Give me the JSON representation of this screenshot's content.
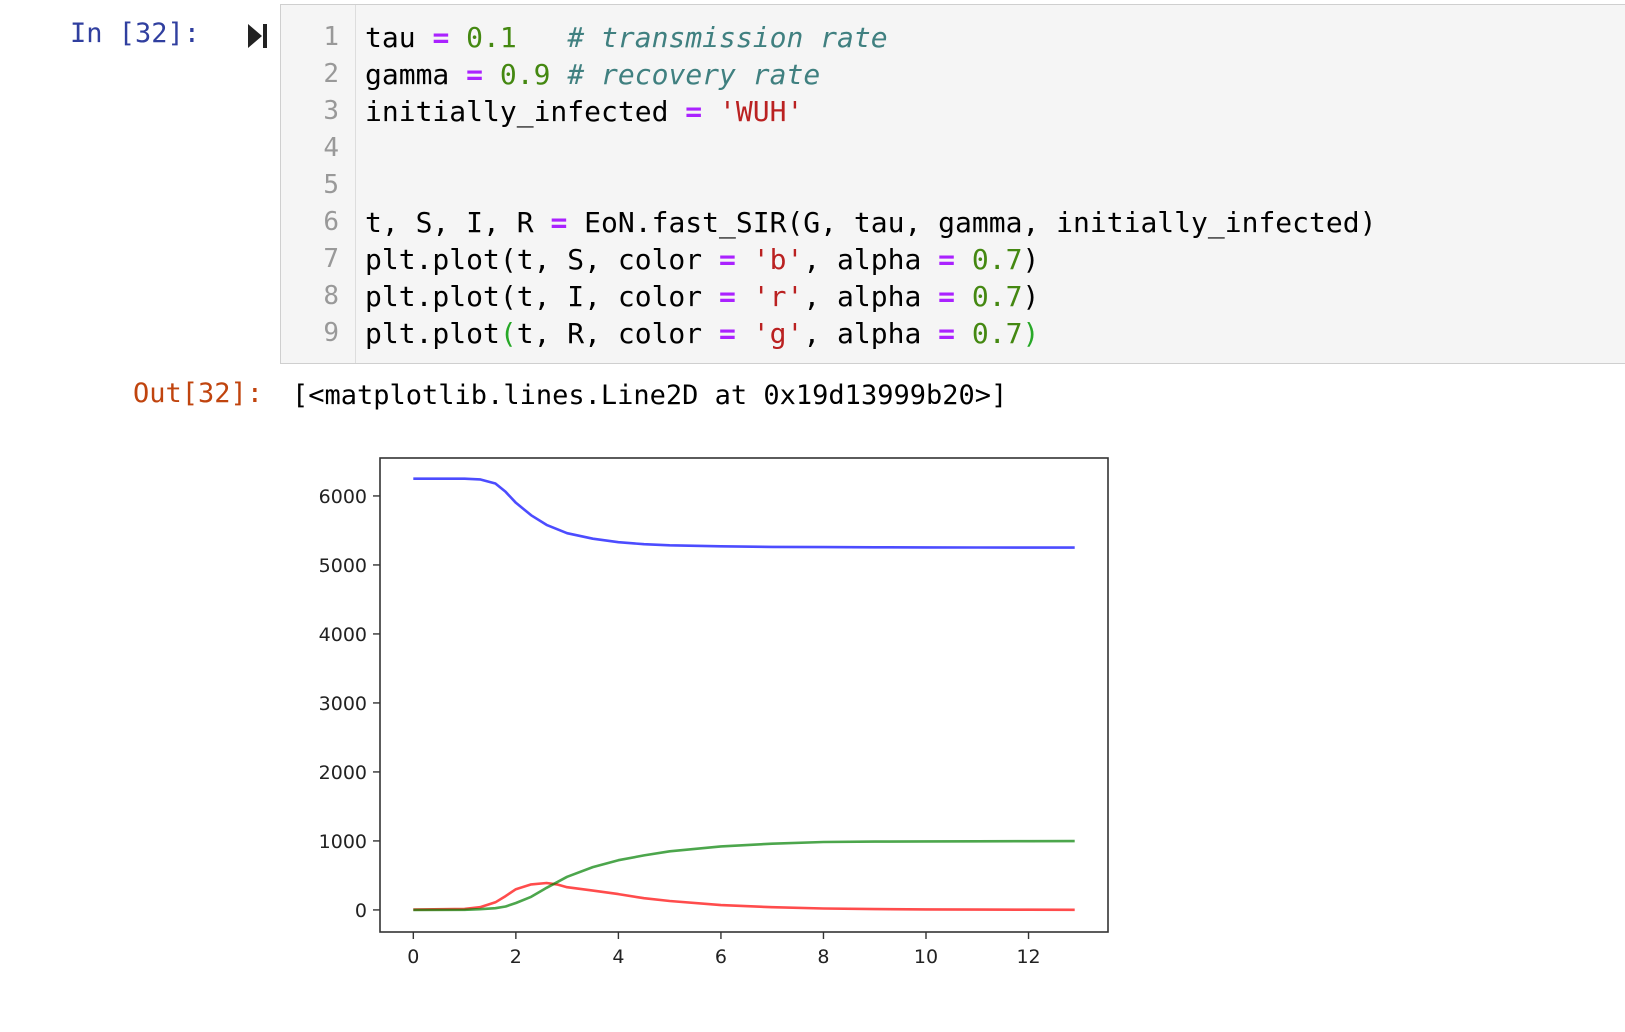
{
  "cell": {
    "in_prompt": "In [32]:",
    "lines": [
      {
        "n": "1",
        "tokens": [
          {
            "t": "tau ",
            "c": ""
          },
          {
            "t": "=",
            "c": "op"
          },
          {
            "t": " ",
            "c": ""
          },
          {
            "t": "0.1",
            "c": "num"
          },
          {
            "t": "   ",
            "c": ""
          },
          {
            "t": "# transmission rate",
            "c": "cm"
          }
        ]
      },
      {
        "n": "2",
        "tokens": [
          {
            "t": "gamma ",
            "c": ""
          },
          {
            "t": "=",
            "c": "op"
          },
          {
            "t": " ",
            "c": ""
          },
          {
            "t": "0.9",
            "c": "num"
          },
          {
            "t": " ",
            "c": ""
          },
          {
            "t": "# recovery rate",
            "c": "cm"
          }
        ]
      },
      {
        "n": "3",
        "tokens": [
          {
            "t": "initially_infected ",
            "c": ""
          },
          {
            "t": "=",
            "c": "op"
          },
          {
            "t": " ",
            "c": ""
          },
          {
            "t": "'WUH'",
            "c": "str"
          }
        ]
      },
      {
        "n": "4",
        "tokens": []
      },
      {
        "n": "5",
        "tokens": []
      },
      {
        "n": "6",
        "tokens": [
          {
            "t": "t, S, I, R ",
            "c": ""
          },
          {
            "t": "=",
            "c": "op"
          },
          {
            "t": " EoN.fast_SIR(G, tau, gamma, initially_infected)",
            "c": ""
          }
        ]
      },
      {
        "n": "7",
        "tokens": [
          {
            "t": "plt.plot(t, S, color ",
            "c": ""
          },
          {
            "t": "=",
            "c": "op"
          },
          {
            "t": " ",
            "c": ""
          },
          {
            "t": "'b'",
            "c": "str"
          },
          {
            "t": ", alpha ",
            "c": ""
          },
          {
            "t": "=",
            "c": "op"
          },
          {
            "t": " ",
            "c": ""
          },
          {
            "t": "0.7",
            "c": "num"
          },
          {
            "t": ")",
            "c": ""
          }
        ]
      },
      {
        "n": "8",
        "tokens": [
          {
            "t": "plt.plot(t, I, color ",
            "c": ""
          },
          {
            "t": "=",
            "c": "op"
          },
          {
            "t": " ",
            "c": ""
          },
          {
            "t": "'r'",
            "c": "str"
          },
          {
            "t": ", alpha ",
            "c": ""
          },
          {
            "t": "=",
            "c": "op"
          },
          {
            "t": " ",
            "c": ""
          },
          {
            "t": "0.7",
            "c": "num"
          },
          {
            "t": ")",
            "c": ""
          }
        ]
      },
      {
        "n": "9",
        "tokens": [
          {
            "t": "plt.plot",
            "c": ""
          },
          {
            "t": "(",
            "c": "br"
          },
          {
            "t": "t, R, color ",
            "c": ""
          },
          {
            "t": "=",
            "c": "op"
          },
          {
            "t": " ",
            "c": ""
          },
          {
            "t": "'g'",
            "c": "str"
          },
          {
            "t": ", alpha ",
            "c": ""
          },
          {
            "t": "=",
            "c": "op"
          },
          {
            "t": " ",
            "c": ""
          },
          {
            "t": "0.7",
            "c": "num"
          },
          {
            "t": ")",
            "c": "br"
          }
        ]
      }
    ],
    "out_prompt": "Out[32]:",
    "out_text": "[<matplotlib.lines.Line2D at 0x19d13999b20>]",
    "icon": "run-cell-icon"
  },
  "chart_data": {
    "type": "line",
    "title": "",
    "xlabel": "",
    "ylabel": "",
    "xlim": [
      -0.65,
      13.55
    ],
    "ylim": [
      -320,
      6550
    ],
    "xticks": [
      "0",
      "2",
      "4",
      "6",
      "8",
      "10",
      "12"
    ],
    "yticks": [
      "0",
      "1000",
      "2000",
      "3000",
      "4000",
      "5000",
      "6000"
    ],
    "grid": false,
    "series": [
      {
        "color": "#0000ff",
        "alpha": 0.7,
        "x": [
          0,
          1.0,
          1.3,
          1.6,
          1.8,
          2.0,
          2.3,
          2.6,
          3.0,
          3.5,
          4.0,
          4.5,
          5.0,
          6.0,
          7.0,
          8.0,
          9.0,
          10.0,
          11.0,
          12.0,
          12.9
        ],
        "y": [
          6250,
          6250,
          6240,
          6180,
          6060,
          5900,
          5720,
          5580,
          5460,
          5380,
          5330,
          5300,
          5285,
          5270,
          5262,
          5258,
          5255,
          5254,
          5253,
          5252,
          5252
        ]
      },
      {
        "color": "#ff0000",
        "alpha": 0.7,
        "x": [
          0,
          1.0,
          1.3,
          1.6,
          1.8,
          2.0,
          2.3,
          2.6,
          2.8,
          3.0,
          3.5,
          4.0,
          4.5,
          5.0,
          6.0,
          7.0,
          8.0,
          9.0,
          10.0,
          11.0,
          12.0,
          12.9
        ],
        "y": [
          5,
          15,
          40,
          110,
          200,
          300,
          370,
          390,
          370,
          330,
          280,
          230,
          170,
          130,
          70,
          40,
          20,
          12,
          8,
          5,
          3,
          2
        ]
      },
      {
        "color": "#008000",
        "alpha": 0.7,
        "x": [
          0,
          1.0,
          1.3,
          1.6,
          1.8,
          2.0,
          2.3,
          2.6,
          3.0,
          3.5,
          4.0,
          4.5,
          5.0,
          6.0,
          7.0,
          8.0,
          9.0,
          10.0,
          11.0,
          12.0,
          12.9
        ],
        "y": [
          0,
          2,
          10,
          25,
          50,
          100,
          190,
          320,
          480,
          620,
          720,
          790,
          850,
          920,
          960,
          985,
          990,
          993,
          995,
          996,
          997
        ]
      }
    ]
  }
}
